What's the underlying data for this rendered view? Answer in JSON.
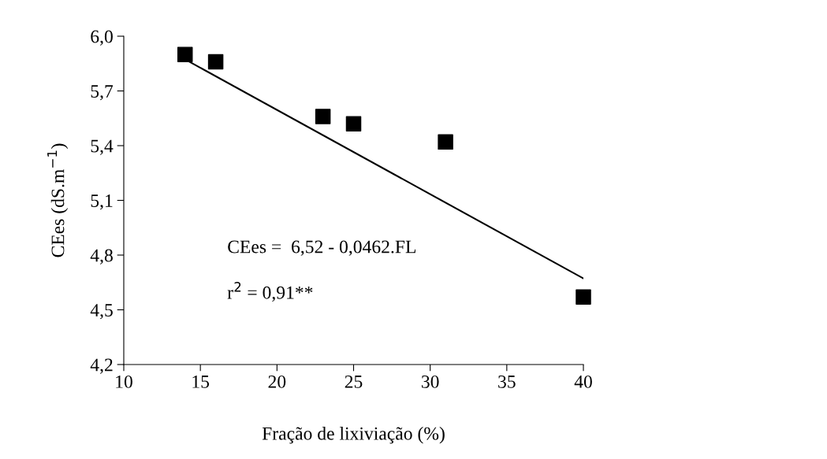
{
  "chart_data": {
    "type": "scatter",
    "xlabel": "Fração de lixiviação (%)",
    "ylabel": "CEes (dS.m$^{−1}$)",
    "xlim": [
      10,
      40
    ],
    "xticks": [
      10,
      15,
      20,
      25,
      30,
      35,
      40
    ],
    "ylim": [
      4.2,
      6.0
    ],
    "yticks": [
      {
        "value": 4.2,
        "label": "4,2"
      },
      {
        "value": 4.5,
        "label": "4,5"
      },
      {
        "value": 4.8,
        "label": "4,8"
      },
      {
        "value": 5.1,
        "label": "5,1"
      },
      {
        "value": 5.4,
        "label": "5,4"
      },
      {
        "value": 5.7,
        "label": "5,7"
      },
      {
        "value": 6.0,
        "label": "6,0"
      }
    ],
    "grid": false,
    "legend": false,
    "series": [
      {
        "marker": "square",
        "color": "#000000",
        "x": [
          14,
          16,
          23,
          25,
          31,
          40
        ],
        "values": [
          5.9,
          5.86,
          5.56,
          5.52,
          5.42,
          4.57
        ]
      },
      {
        "type": "line",
        "marker": "none",
        "line_style": "solid",
        "color": "#000000",
        "x": [
          14,
          40
        ],
        "values": [
          5.873,
          4.672
        ]
      }
    ],
    "annotations": [
      "CEes =  6,52 - 0,0462.FL",
      "r$^{2}$ = 0,91**"
    ]
  }
}
